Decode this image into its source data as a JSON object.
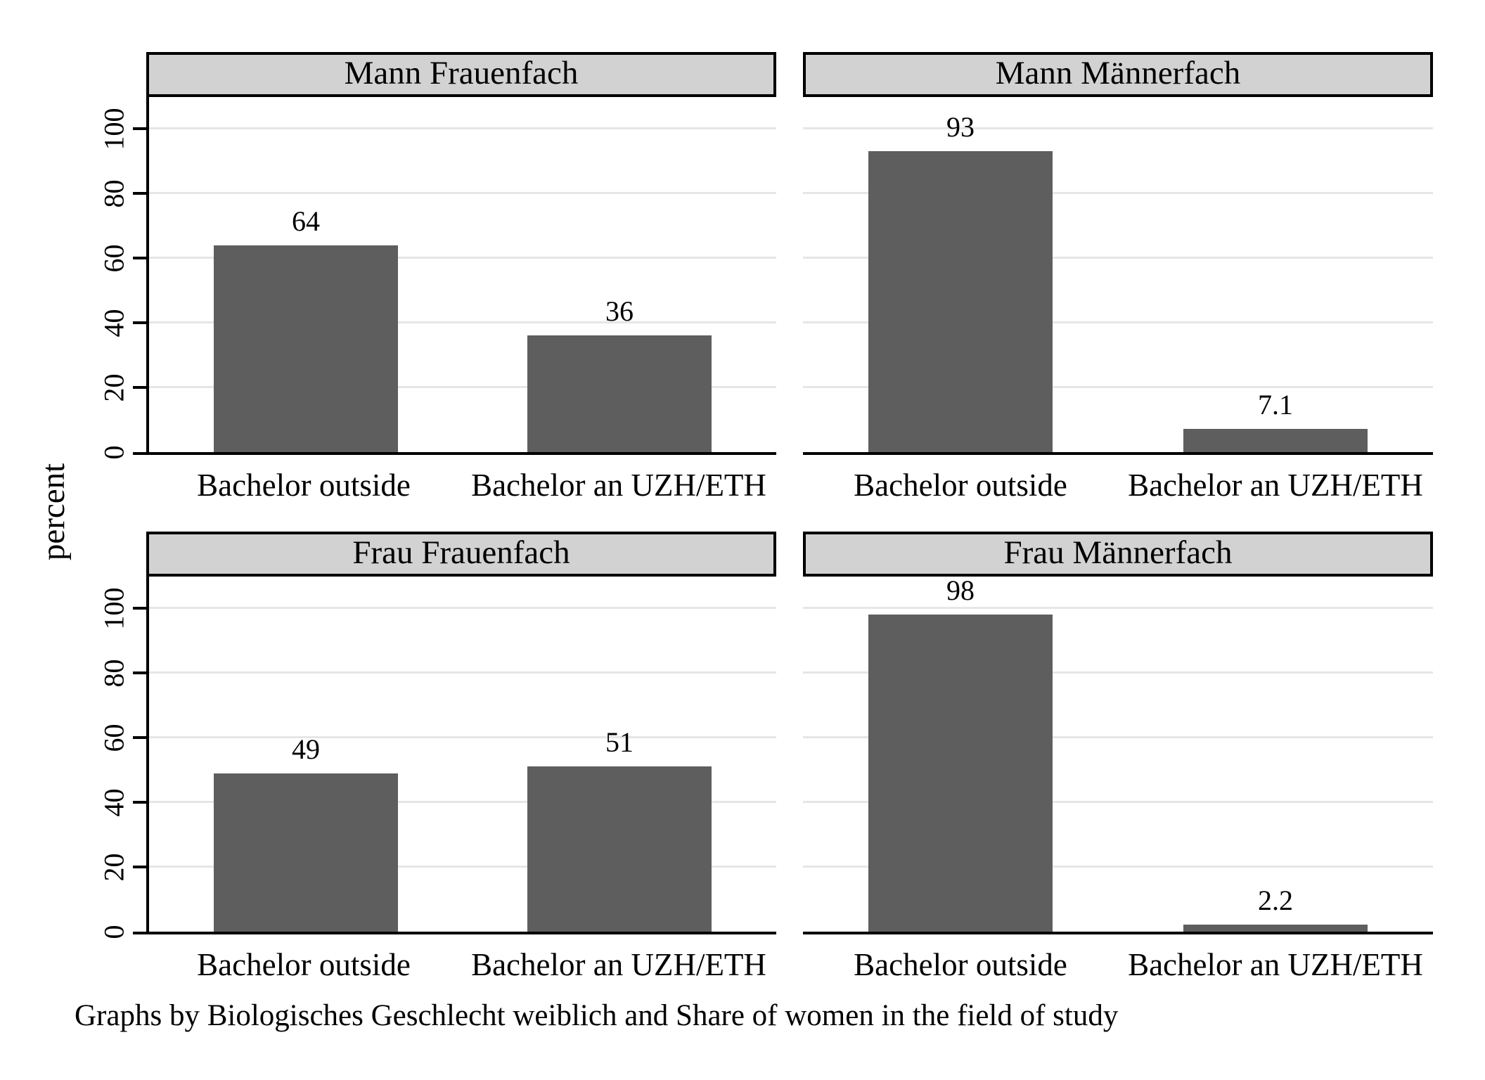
{
  "figure": {
    "background": "#ffffff",
    "bar_color": "#5e5e5e",
    "header_bg": "#d2d2d2",
    "grid_color": "#e6e6e6",
    "axis_color": "#000000"
  },
  "chart_data": {
    "type": "bar",
    "title": "",
    "ylabel": "percent",
    "xlabel": "",
    "categories": [
      "Bachelor outside",
      "Bachelor an UZH/ETH"
    ],
    "yticks": [
      0,
      20,
      40,
      60,
      80,
      100
    ],
    "ylim": [
      0,
      110.6
    ],
    "grid": true,
    "legend": "none",
    "panels": [
      {
        "title": "Mann Frauenfach",
        "row": 0,
        "col": 0,
        "values": [
          64,
          36
        ],
        "value_labels": [
          "64",
          "36"
        ]
      },
      {
        "title": "Mann Männerfach",
        "row": 0,
        "col": 1,
        "values": [
          93,
          7.1
        ],
        "value_labels": [
          "93",
          "7.1"
        ]
      },
      {
        "title": "Frau Frauenfach",
        "row": 1,
        "col": 0,
        "values": [
          49,
          51
        ],
        "value_labels": [
          "49",
          "51"
        ]
      },
      {
        "title": "Frau Männerfach",
        "row": 1,
        "col": 1,
        "values": [
          98,
          2.2
        ],
        "value_labels": [
          "98",
          "2.2"
        ]
      }
    ],
    "note": "Graphs by Biologisches Geschlecht weiblich and Share of women in the field of study"
  }
}
